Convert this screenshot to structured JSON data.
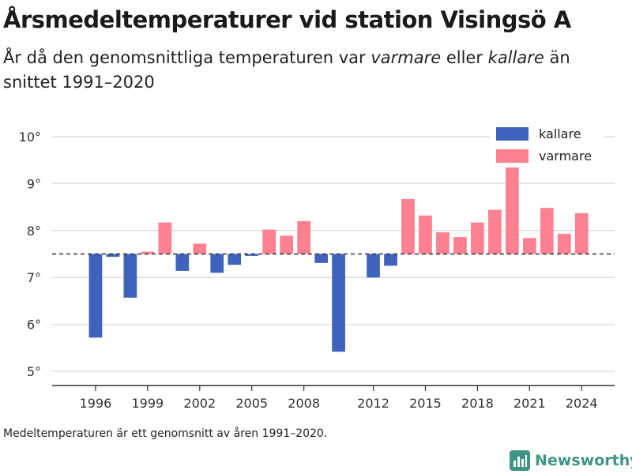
{
  "title": "Årsmedeltemperaturer vid station Visingsö A",
  "subtitle": {
    "part1": "År då den genomsnittliga temperaturen var ",
    "warm_word": "varmare",
    "part2": " eller ",
    "cold_word": "kallare",
    "part3": " än snittet 1991–2020"
  },
  "footnote": "Medeltemperaturen är ett genomsnitt av åren 1991–2020.",
  "logo": {
    "text": "Newsworthy",
    "icon": "bar-chart-logo-icon"
  },
  "colors": {
    "colder": "#3f62bd",
    "warmer": "#fd8190",
    "grid": "#dedede",
    "axis": "#333333"
  },
  "chart_data": {
    "type": "bar",
    "baseline": 7.5,
    "ylim": [
      4.7,
      10.3
    ],
    "yticks": [
      5,
      6,
      7,
      8,
      9,
      10
    ],
    "ytick_labels": [
      "5°",
      "6°",
      "7°",
      "8°",
      "9°",
      "10°"
    ],
    "xtick_years": [
      1996,
      1999,
      2002,
      2005,
      2008,
      2012,
      2015,
      2018,
      2021,
      2024
    ],
    "xlim": [
      1993.5,
      2025.9
    ],
    "legend": {
      "position": "top-right",
      "entries": [
        "kallare",
        "varmare"
      ]
    },
    "series": [
      {
        "name": "kallare",
        "values": [
          {
            "year": 1996,
            "value": 5.72
          },
          {
            "year": 1997,
            "value": 7.44
          },
          {
            "year": 1998,
            "value": 6.57
          },
          {
            "year": 2001,
            "value": 7.14
          },
          {
            "year": 2003,
            "value": 7.1
          },
          {
            "year": 2004,
            "value": 7.27
          },
          {
            "year": 2005,
            "value": 7.46
          },
          {
            "year": 2009,
            "value": 7.31
          },
          {
            "year": 2010,
            "value": 5.42
          },
          {
            "year": 2012,
            "value": 7.0
          },
          {
            "year": 2013,
            "value": 7.25
          }
        ]
      },
      {
        "name": "varmare",
        "values": [
          {
            "year": 1999,
            "value": 7.55
          },
          {
            "year": 2000,
            "value": 8.17
          },
          {
            "year": 2002,
            "value": 7.72
          },
          {
            "year": 2006,
            "value": 8.02
          },
          {
            "year": 2007,
            "value": 7.89
          },
          {
            "year": 2008,
            "value": 8.2
          },
          {
            "year": 2014,
            "value": 8.67
          },
          {
            "year": 2015,
            "value": 8.32
          },
          {
            "year": 2016,
            "value": 7.96
          },
          {
            "year": 2017,
            "value": 7.86
          },
          {
            "year": 2018,
            "value": 8.17
          },
          {
            "year": 2019,
            "value": 8.44
          },
          {
            "year": 2020,
            "value": 9.35
          },
          {
            "year": 2021,
            "value": 7.84
          },
          {
            "year": 2022,
            "value": 8.48
          },
          {
            "year": 2023,
            "value": 7.93
          },
          {
            "year": 2024,
            "value": 8.37
          }
        ]
      }
    ]
  }
}
